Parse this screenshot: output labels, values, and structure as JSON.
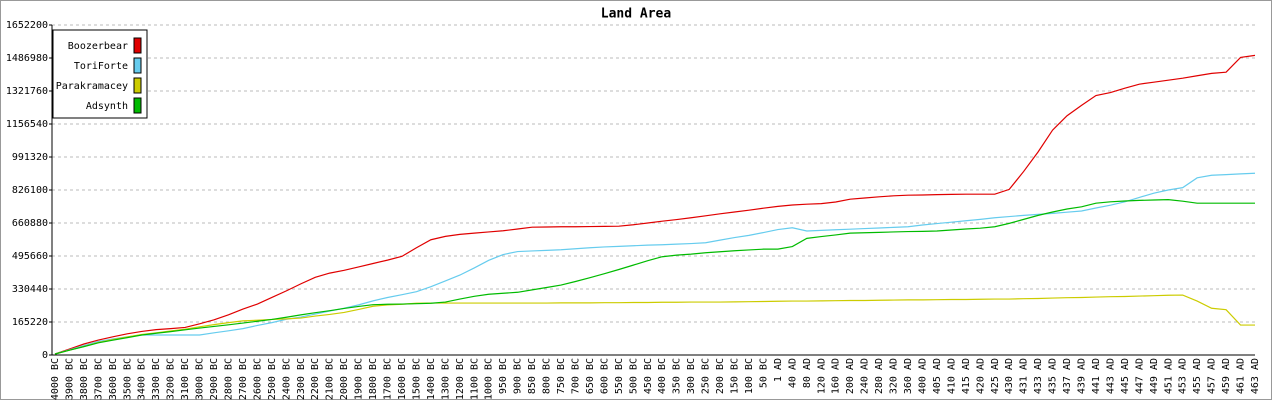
{
  "chart_data": {
    "type": "line",
    "title": "Land Area",
    "categories": [
      "4000 BC",
      "3900 BC",
      "3800 BC",
      "3700 BC",
      "3600 BC",
      "3500 BC",
      "3400 BC",
      "3300 BC",
      "3200 BC",
      "3100 BC",
      "3000 BC",
      "2900 BC",
      "2800 BC",
      "2700 BC",
      "2600 BC",
      "2500 BC",
      "2400 BC",
      "2300 BC",
      "2200 BC",
      "2100 BC",
      "2000 BC",
      "1900 BC",
      "1800 BC",
      "1700 BC",
      "1600 BC",
      "1500 BC",
      "1400 BC",
      "1300 BC",
      "1200 BC",
      "1100 BC",
      "1000 BC",
      "950 BC",
      "900 BC",
      "850 BC",
      "800 BC",
      "750 BC",
      "700 BC",
      "650 BC",
      "600 BC",
      "550 BC",
      "500 BC",
      "450 BC",
      "400 BC",
      "350 BC",
      "300 BC",
      "250 BC",
      "200 BC",
      "150 BC",
      "100 BC",
      "50 BC",
      "1 AD",
      "40 AD",
      "80 AD",
      "120 AD",
      "160 AD",
      "200 AD",
      "240 AD",
      "280 AD",
      "320 AD",
      "360 AD",
      "400 AD",
      "405 AD",
      "410 AD",
      "415 AD",
      "420 AD",
      "425 AD",
      "430 AD",
      "431 AD",
      "433 AD",
      "435 AD",
      "437 AD",
      "439 AD",
      "441 AD",
      "443 AD",
      "445 AD",
      "447 AD",
      "449 AD",
      "451 AD",
      "453 AD",
      "455 AD",
      "457 AD",
      "459 AD",
      "461 AD",
      "463 AD"
    ],
    "series": [
      {
        "name": "Boozerbear",
        "color": "#e00000",
        "values": [
          5000,
          30000,
          55000,
          75000,
          91000,
          106000,
          118000,
          127000,
          132000,
          138000,
          156000,
          176000,
          201000,
          230000,
          255000,
          288000,
          321000,
          356000,
          389000,
          410000,
          424000,
          441000,
          458000,
          475000,
          494000,
          537000,
          577000,
          594000,
          604000,
          610000,
          616000,
          622000,
          631000,
          640000,
          641000,
          642000,
          642000,
          643000,
          644000,
          645000,
          652000,
          661000,
          670000,
          678000,
          687000,
          697000,
          707000,
          716000,
          725000,
          735000,
          744000,
          751000,
          755000,
          758000,
          766000,
          780000,
          786000,
          792000,
          797000,
          800000,
          801000,
          803000,
          804000,
          805000,
          805000,
          805000,
          829000,
          919000,
          1017000,
          1126000,
          1198000,
          1250000,
          1299000,
          1314000,
          1336000,
          1356000,
          1366000,
          1376000,
          1386000,
          1398000,
          1410000,
          1416000,
          1490000,
          1500000
        ]
      },
      {
        "name": "ToriForte",
        "color": "#66ccee",
        "values": [
          5000,
          26000,
          47000,
          68000,
          80000,
          91000,
          100000,
          100000,
          100000,
          100000,
          100000,
          111000,
          121000,
          132000,
          148000,
          162000,
          179000,
          190000,
          205000,
          220000,
          234000,
          251000,
          271000,
          288000,
          302000,
          317000,
          342000,
          371000,
          400000,
          436000,
          474000,
          503000,
          518000,
          521000,
          524000,
          527000,
          532000,
          537000,
          541000,
          544000,
          547000,
          550000,
          552000,
          555000,
          558000,
          562000,
          575000,
          588000,
          599000,
          613000,
          628000,
          637000,
          621000,
          624000,
          627000,
          630000,
          633000,
          636000,
          639000,
          642000,
          651000,
          658000,
          665000,
          672000,
          679000,
          687000,
          693000,
          699000,
          704000,
          709000,
          715000,
          721000,
          736000,
          750000,
          767000,
          789000,
          810000,
          826000,
          838000,
          887000,
          900000,
          903000,
          907000,
          910000
        ]
      },
      {
        "name": "Parakramacey",
        "color": "#cccc00",
        "values": [
          5000,
          24000,
          43000,
          63000,
          77000,
          90000,
          103000,
          111000,
          120000,
          129000,
          141000,
          152000,
          162000,
          171000,
          174000,
          178000,
          181000,
          185000,
          195000,
          203000,
          213000,
          228000,
          244000,
          251000,
          254000,
          259000,
          260000,
          260000,
          260000,
          260000,
          260000,
          260000,
          260000,
          260000,
          260000,
          261000,
          261000,
          261000,
          262000,
          262000,
          263000,
          263000,
          264000,
          264000,
          265000,
          265000,
          265000,
          266000,
          267000,
          268000,
          269000,
          270000,
          270000,
          271000,
          272000,
          273000,
          273000,
          274000,
          275000,
          276000,
          276000,
          277000,
          278000,
          278000,
          279000,
          280000,
          280000,
          282000,
          283000,
          285000,
          287000,
          288000,
          290000,
          292000,
          293000,
          295000,
          297000,
          299000,
          300000,
          270000,
          234000,
          227000,
          150000,
          150000
        ]
      },
      {
        "name": "Adsynth",
        "color": "#00bb00",
        "values": [
          5000,
          24000,
          42000,
          61000,
          74000,
          87000,
          100000,
          109000,
          117000,
          126000,
          135000,
          143000,
          151000,
          160000,
          169000,
          178000,
          189000,
          201000,
          212000,
          222000,
          233000,
          243000,
          252000,
          254000,
          255000,
          257000,
          259000,
          265000,
          280000,
          294000,
          304000,
          309000,
          314000,
          326000,
          338000,
          350000,
          368000,
          387000,
          407000,
          428000,
          450000,
          472000,
          492000,
          500000,
          505000,
          512000,
          517000,
          522000,
          526000,
          530000,
          530000,
          543000,
          584000,
          593000,
          601000,
          610000,
          612000,
          614000,
          616000,
          618000,
          619000,
          621000,
          626000,
          631000,
          635000,
          642000,
          659000,
          679000,
          699000,
          716000,
          731000,
          742000,
          760000,
          767000,
          771000,
          774000,
          776000,
          778000,
          770000,
          760000,
          760000,
          760000,
          760000,
          760000
        ]
      }
    ],
    "ylim": [
      0,
      1652200
    ],
    "yticks": [
      0,
      165220,
      330440,
      495660,
      660880,
      826100,
      991320,
      1156540,
      1321760,
      1486980,
      1652200
    ],
    "grid": true,
    "legend": "upper left"
  }
}
